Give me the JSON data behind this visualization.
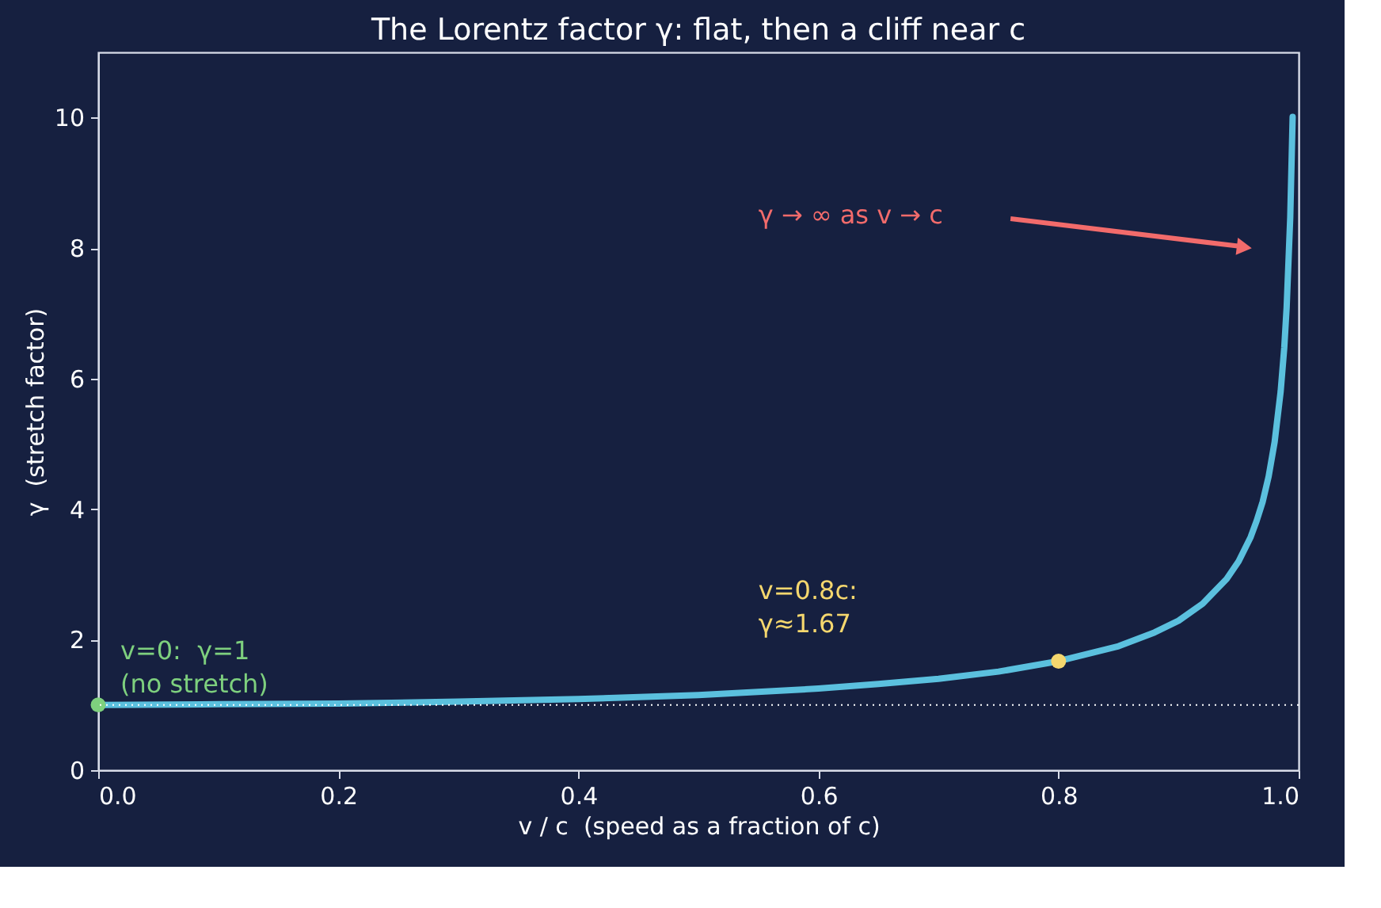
{
  "chart_data": {
    "type": "line",
    "title": "The Lorentz factor γ: flat, then a cliff near c",
    "xlabel": "v / c  (speed as a fraction of c)",
    "ylabel": "γ  (stretch factor)",
    "xlim": [
      0,
      1
    ],
    "xticks": [
      {
        "value": 0,
        "label": "0.0"
      },
      0.2,
      0.4,
      0.6,
      0.8,
      {
        "value": 1,
        "label": "1.0"
      }
    ],
    "ylim": [
      0,
      11
    ],
    "yticks": [
      0,
      2,
      4,
      6,
      8,
      10
    ],
    "grid": false,
    "legend": false,
    "line_style": "solid",
    "series": [
      {
        "color": "#5bc0de",
        "x": [
          0,
          0.1,
          0.2,
          0.3,
          0.4,
          0.5,
          0.6,
          0.65,
          0.7,
          0.75,
          0.8,
          0.85,
          0.88,
          0.9,
          0.92,
          0.94,
          0.95,
          0.96,
          0.965,
          0.97,
          0.975,
          0.98,
          0.985,
          0.988,
          0.99,
          0.993,
          0.995
        ],
        "values": [
          1,
          1.01,
          1.02,
          1.05,
          1.09,
          1.15,
          1.25,
          1.32,
          1.4,
          1.51,
          1.67,
          1.9,
          2.11,
          2.29,
          2.55,
          2.93,
          3.2,
          3.57,
          3.82,
          4.11,
          4.5,
          5.03,
          5.8,
          6.47,
          7.09,
          8.47,
          10.01
        ]
      },
      {
        "type": "scatter",
        "marker": "circle",
        "colors": [
          "#7ed07e",
          "#f5d76e"
        ],
        "x": [
          0,
          0.8
        ],
        "values": [
          1,
          1.67
        ]
      }
    ],
    "ref_lines": [
      {
        "axis": "y",
        "value": 1,
        "color": "#ffffff",
        "line_style": "dotted"
      }
    ],
    "annotations": [
      {
        "text": "v=0:  γ=1\n(no stretch)",
        "x": 0,
        "y": 1
      },
      "v=0.8c:\nγ≈1.67",
      "γ → ∞ as v → c"
    ]
  }
}
